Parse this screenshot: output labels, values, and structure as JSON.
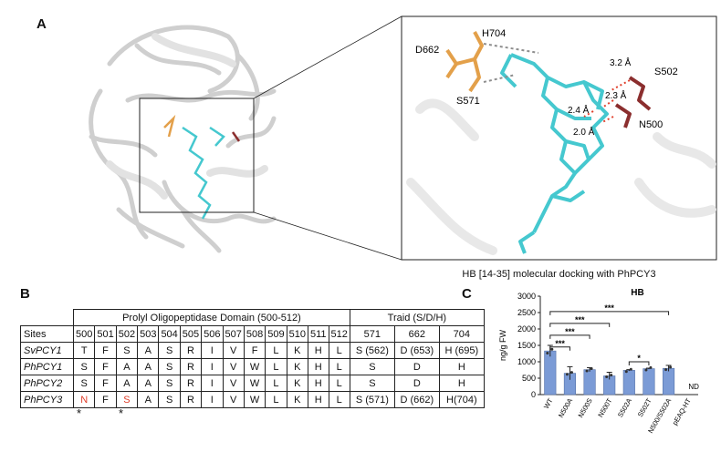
{
  "figure": {
    "panels": {
      "a": "A",
      "b": "B",
      "c": "C"
    },
    "docking_caption": "HB [14-35] molecular docking with PhPCY3",
    "residue_labels": {
      "h704": "H704",
      "d662": "D662",
      "s571": "S571",
      "s502": "S502",
      "n500": "N500"
    },
    "distances": {
      "d1": "3.2 Å",
      "d2": "2.3 Å",
      "d3": "2.4 Å",
      "d4": "2.0 Å"
    },
    "colors": {
      "protein": "#d6d6d6",
      "ligand": "#45c8cf",
      "triad": "#e3a04a",
      "site_residues": "#8b2e2e",
      "bars": "#7b9bd6",
      "highlight": "#e0402c"
    }
  },
  "alignment": {
    "domain_header": "Prolyl Oligopeptidase Domain (500-512)",
    "triad_header": "Traid (S/D/H)",
    "sites_label": "Sites",
    "positions": [
      "500",
      "501",
      "502",
      "503",
      "504",
      "505",
      "506",
      "507",
      "508",
      "509",
      "510",
      "511",
      "512"
    ],
    "triad_positions": [
      "571",
      "662",
      "704"
    ],
    "rows": [
      {
        "name": "SvPCY1",
        "residues": [
          "T",
          "F",
          "S",
          "A",
          "S",
          "R",
          "I",
          "V",
          "F",
          "L",
          "K",
          "H",
          "L"
        ],
        "triad": [
          "S (562)",
          "D (653)",
          "H (695)"
        ]
      },
      {
        "name": "PhPCY1",
        "residues": [
          "S",
          "F",
          "A",
          "A",
          "S",
          "R",
          "I",
          "V",
          "W",
          "L",
          "K",
          "H",
          "L"
        ],
        "triad": [
          "S",
          "D",
          "H"
        ]
      },
      {
        "name": "PhPCY2",
        "residues": [
          "S",
          "F",
          "A",
          "A",
          "S",
          "R",
          "I",
          "V",
          "W",
          "L",
          "K",
          "H",
          "L"
        ],
        "triad": [
          "S",
          "D",
          "H"
        ]
      },
      {
        "name": "PhPCY3",
        "residues": [
          "N",
          "F",
          "S",
          "A",
          "S",
          "R",
          "I",
          "V",
          "W",
          "L",
          "K",
          "H",
          "L"
        ],
        "triad": [
          "S (571)",
          "D (662)",
          "H(704)"
        ]
      }
    ],
    "stars": [
      "*",
      "*"
    ]
  },
  "chart_data": {
    "type": "bar",
    "title": "HB",
    "ylabel": "ng/g FW",
    "ylim": [
      0,
      3000
    ],
    "yticks": [
      0,
      500,
      1000,
      1500,
      2000,
      2500,
      3000
    ],
    "categories": [
      "WT",
      "N500A",
      "N500S",
      "N500T",
      "S502A",
      "S502T",
      "N500/S502A",
      "pEAQ-HT"
    ],
    "values": [
      1330,
      650,
      760,
      570,
      740,
      790,
      800,
      0
    ],
    "errors": [
      170,
      200,
      60,
      110,
      20,
      15,
      90,
      0
    ],
    "annotations": [
      "ND"
    ],
    "significance": [
      {
        "from": "WT",
        "to": "N500A",
        "label": "***"
      },
      {
        "from": "WT",
        "to": "N500S",
        "label": "***"
      },
      {
        "from": "WT",
        "to": "N500T",
        "label": "***"
      },
      {
        "from": "WT",
        "to": "N500/S502A",
        "label": "***"
      },
      {
        "from": "S502A",
        "to": "S502T",
        "label": "*"
      }
    ]
  }
}
